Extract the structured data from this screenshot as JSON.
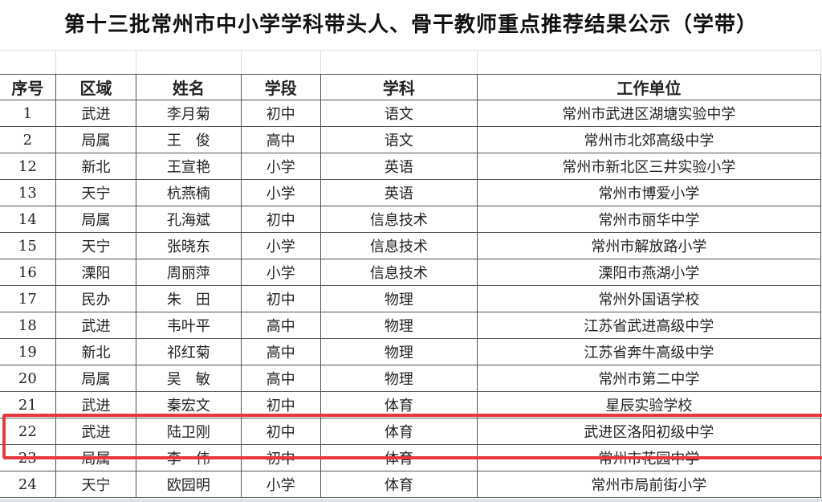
{
  "title": "第十三批常州市中小学学科带头人、骨干教师重点推荐结果公示（学带）",
  "headers": [
    "序号",
    "区域",
    "姓名",
    "学段",
    "学科",
    "工作单位"
  ],
  "rows": [
    [
      "1",
      "武进",
      "李月菊",
      "初中",
      "语文",
      "常州市武进区湖塘实验中学"
    ],
    [
      "2",
      "局属",
      "王　俊",
      "高中",
      "语文",
      "常州市北郊高级中学"
    ],
    [
      "12",
      "新北",
      "王宣艳",
      "小学",
      "英语",
      "常州市新北区三井实验小学"
    ],
    [
      "13",
      "天宁",
      "杭燕楠",
      "小学",
      "英语",
      "常州市博爱小学"
    ],
    [
      "14",
      "局属",
      "孔海斌",
      "初中",
      "信息技术",
      "常州市丽华中学"
    ],
    [
      "15",
      "天宁",
      "张晓东",
      "小学",
      "信息技术",
      "常州市解放路小学"
    ],
    [
      "16",
      "溧阳",
      "周丽萍",
      "小学",
      "信息技术",
      "溧阳市燕湖小学"
    ],
    [
      "17",
      "民办",
      "朱　田",
      "初中",
      "物理",
      "常州外国语学校"
    ],
    [
      "18",
      "武进",
      "韦叶平",
      "高中",
      "物理",
      "江苏省武进高级中学"
    ],
    [
      "19",
      "新北",
      "祁红菊",
      "高中",
      "物理",
      "江苏省奔牛高级中学"
    ],
    [
      "20",
      "局属",
      "吴　敏",
      "高中",
      "物理",
      "常州市第二中学"
    ],
    [
      "21",
      "武进",
      "秦宏文",
      "初中",
      "体育",
      "星辰实验学校"
    ],
    [
      "22",
      "武进",
      "陆卫刚",
      "初中",
      "体育",
      "武进区洛阳初级中学"
    ],
    [
      "23",
      "局属",
      "李　伟",
      "初中",
      "体育",
      "常州市花园中学"
    ],
    [
      "24",
      "天宁",
      "欧园明",
      "小学",
      "体育",
      "常州市局前街小学"
    ]
  ],
  "highlighted_row": "22",
  "colors": {
    "highlight_border": "#e8383d",
    "grid": "#555555"
  }
}
